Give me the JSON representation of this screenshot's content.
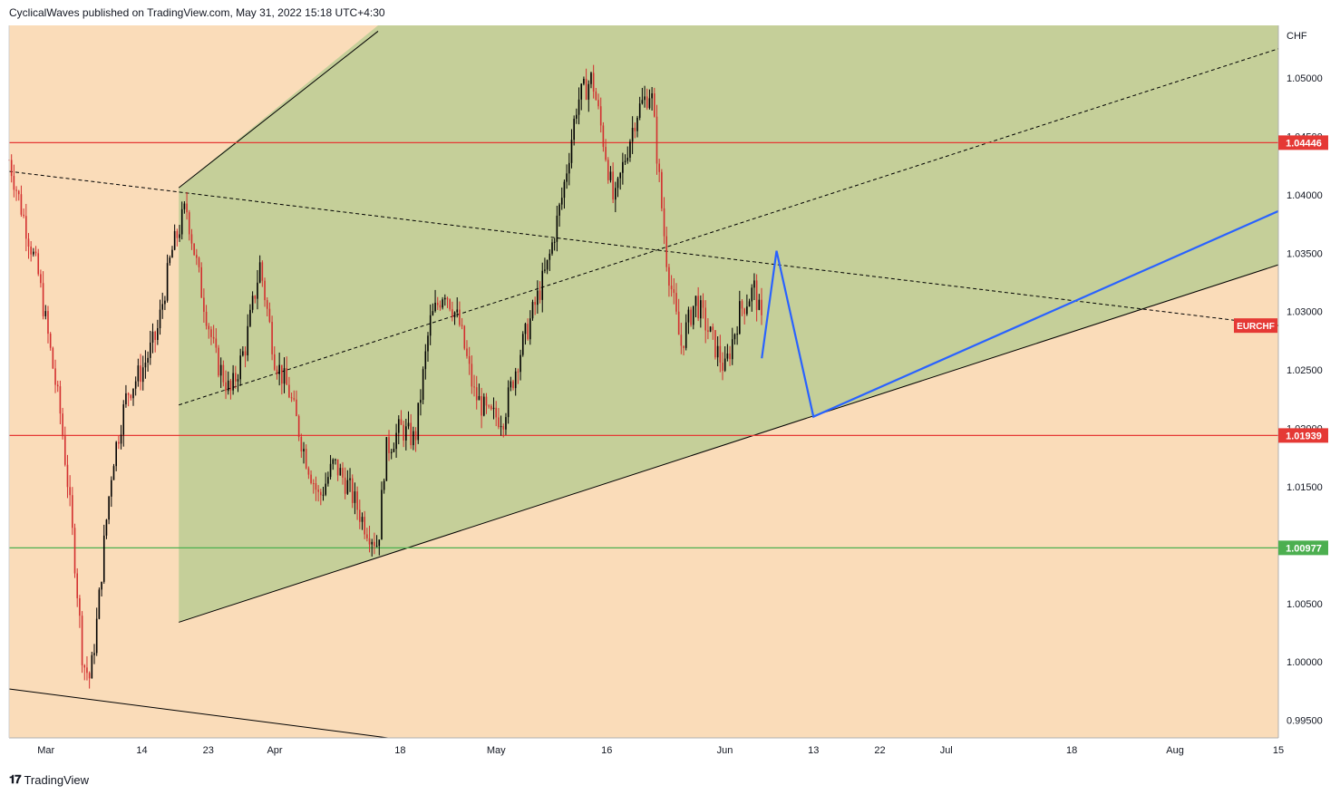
{
  "header": {
    "publish_text": "CyclicalWaves published on TradingView.com, May 31, 2022 15:18 UTC+4:30"
  },
  "footer": {
    "logo_icon": "tradingview-logo-icon",
    "brand": "TradingView"
  },
  "colors": {
    "background": "#fadcb9",
    "channel_fill": "#c5cf99",
    "support_resistance_red": "#e53935",
    "support_green": "#4caf50",
    "projection_blue": "#2962ff",
    "candle_up": "#000000",
    "candle_down": "#d32f2f"
  },
  "chart_data": {
    "type": "candlestick",
    "symbol": "EURCHF",
    "currency": "CHF",
    "x_ticks": [
      "Mar",
      "14",
      "23",
      "Apr",
      "18",
      "May",
      "16",
      "Jun",
      "13",
      "22",
      "Jul",
      "18",
      "Aug",
      "15"
    ],
    "y_ticks": [
      "1.05000",
      "1.04500",
      "1.04000",
      "1.03500",
      "1.03000",
      "1.02500",
      "1.02000",
      "1.01500",
      "1.01000",
      "1.00500",
      "1.00000",
      "0.99500"
    ],
    "ylim": [
      0.9935,
      1.0545
    ],
    "horizontal_levels": [
      {
        "label": "1.04446",
        "value": 1.04446,
        "color": "#e53935"
      },
      {
        "label": "1.01939",
        "value": 1.01939,
        "color": "#e53935"
      },
      {
        "label": "1.00977",
        "value": 1.00977,
        "color": "#4caf50"
      }
    ],
    "last_price_label": "EURCHF",
    "last_price": 1.0288,
    "price_path": [
      [
        "Feb 24",
        1.043
      ],
      [
        "Feb 26",
        1.038
      ],
      [
        "Feb 28",
        1.033
      ],
      [
        "Mar 1",
        1.029
      ],
      [
        "Mar 2",
        1.025
      ],
      [
        "Mar 3",
        1.021
      ],
      [
        "Mar 4",
        1.015
      ],
      [
        "Mar 5",
        1.008
      ],
      [
        "Mar 6",
        1.0
      ],
      [
        "Mar 7",
        0.9985
      ],
      [
        "Mar 8",
        1.004
      ],
      [
        "Mar 9",
        1.011
      ],
      [
        "Mar 10",
        1.017
      ],
      [
        "Mar 12",
        1.023
      ],
      [
        "Mar 14",
        1.025
      ],
      [
        "Mar 16",
        1.028
      ],
      [
        "Mar 18",
        1.035
      ],
      [
        "Mar 20",
        1.039
      ],
      [
        "Mar 22",
        1.032
      ],
      [
        "Mar 24",
        1.026
      ],
      [
        "Mar 26",
        1.023
      ],
      [
        "Mar 28",
        1.027
      ],
      [
        "Mar 30",
        1.034
      ],
      [
        "Apr 1",
        1.026
      ],
      [
        "Apr 3",
        1.023
      ],
      [
        "Apr 5",
        1.018
      ],
      [
        "Apr 7",
        1.014
      ],
      [
        "Apr 9",
        1.017
      ],
      [
        "Apr 11",
        1.015
      ],
      [
        "Apr 13",
        1.012
      ],
      [
        "Apr 15",
        1.01
      ],
      [
        "Apr 16",
        1.018
      ],
      [
        "Apr 18",
        1.02
      ],
      [
        "Apr 20",
        1.019
      ],
      [
        "Apr 22",
        1.029
      ],
      [
        "Apr 24",
        1.032
      ],
      [
        "Apr 26",
        1.029
      ],
      [
        "Apr 28",
        1.023
      ],
      [
        "Apr 30",
        1.021
      ],
      [
        "May 2",
        1.021
      ],
      [
        "May 4",
        1.026
      ],
      [
        "May 6",
        1.03
      ],
      [
        "May 8",
        1.034
      ],
      [
        "May 10",
        1.04
      ],
      [
        "May 12",
        1.048
      ],
      [
        "May 14",
        1.05
      ],
      [
        "May 16",
        1.043
      ],
      [
        "May 17",
        1.039
      ],
      [
        "May 18",
        1.042
      ],
      [
        "May 20",
        1.047
      ],
      [
        "May 22",
        1.049
      ],
      [
        "May 24",
        1.035
      ],
      [
        "May 26",
        1.027
      ],
      [
        "May 28",
        1.031
      ],
      [
        "May 30",
        1.028
      ],
      [
        "Jun 1",
        1.025
      ],
      [
        "Jun 3",
        1.03
      ],
      [
        "Jun 5",
        1.032
      ],
      [
        "Jun 6",
        1.0288
      ]
    ],
    "projection_path": [
      [
        "Jun 6",
        1.026
      ],
      [
        "Jun 8",
        1.0352
      ],
      [
        "Jun 13",
        1.021
      ],
      [
        "Aug 15",
        1.0386
      ]
    ],
    "channel": {
      "upper": [
        [
          "Mar 19",
          1.0406
        ],
        [
          "Apr 15",
          1.054
        ]
      ],
      "lower": [
        [
          "Mar 19",
          1.0034
        ],
        [
          "Aug 15",
          1.034
        ]
      ],
      "upper_dashed_mid": [
        [
          "Mar 19",
          1.022
        ],
        [
          "Aug 15",
          1.0525
        ]
      ],
      "declining_dashed": [
        [
          "Feb 24",
          1.042
        ],
        [
          "Aug 15",
          1.0288
        ]
      ]
    }
  }
}
